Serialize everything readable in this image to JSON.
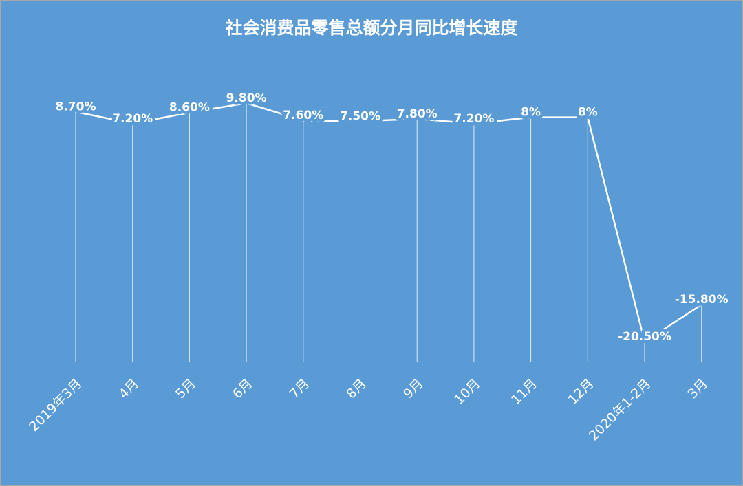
{
  "chart_data": {
    "type": "line",
    "title": "社会消费品零售总额分月同比增长速度",
    "categories": [
      "2019年3月",
      "4月",
      "5月",
      "6月",
      "7月",
      "8月",
      "9月",
      "10月",
      "11月",
      "12月",
      "2020年1-2月",
      "3月"
    ],
    "series": [
      {
        "name": "社会消费品零售总额分月同比增长速度",
        "color": "#ffffff",
        "values": [
          8.7,
          7.2,
          8.6,
          9.8,
          7.6,
          7.5,
          7.8,
          7.2,
          8,
          8,
          -20.5,
          -15.8
        ],
        "value_labels": [
          "8.70%",
          "7.20%",
          "8.60%",
          "9.80%",
          "7.60%",
          "7.50%",
          "7.80%",
          "7.20%",
          "8%",
          "8%",
          "-20.50%",
          "-15.80%"
        ]
      }
    ],
    "background": "#5b9bd5"
  }
}
